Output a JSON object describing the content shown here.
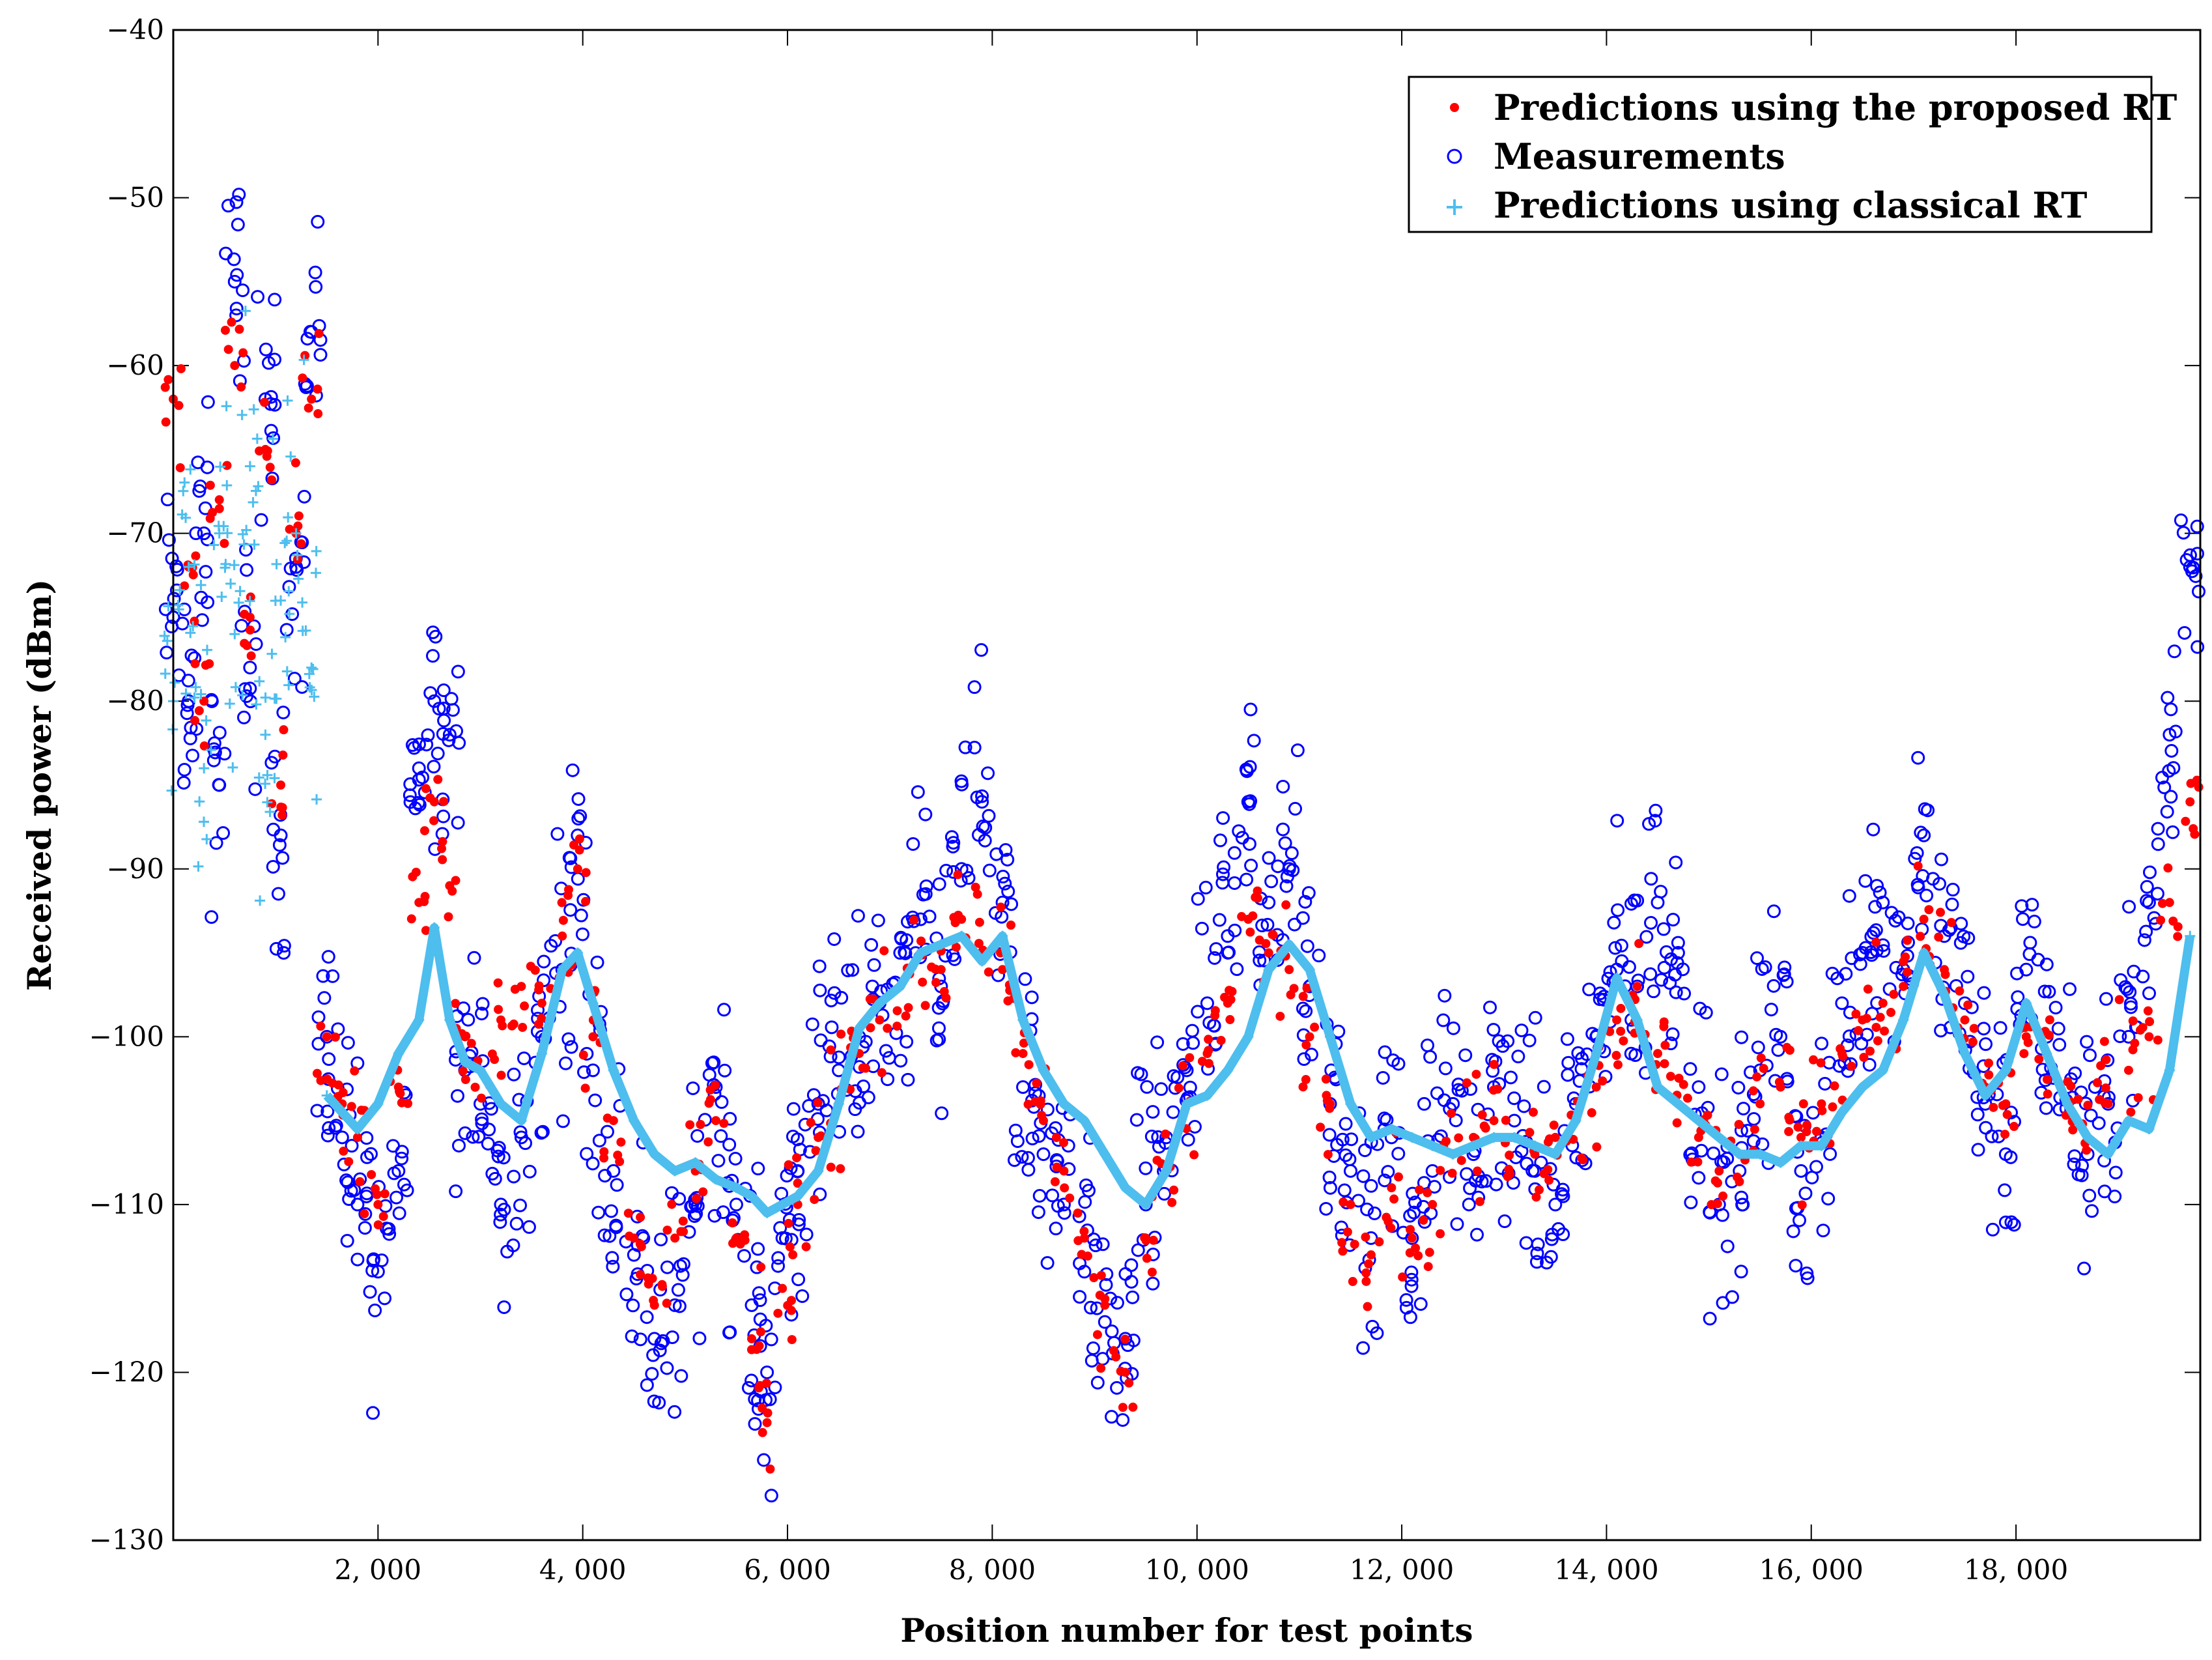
{
  "chart_data": {
    "type": "scatter",
    "xlabel": "Position number for test points",
    "ylabel": "Received power (dBm)",
    "xlim": [
      0,
      19800
    ],
    "ylim": [
      -130,
      -40
    ],
    "xticks": [
      2000,
      4000,
      6000,
      8000,
      10000,
      12000,
      14000,
      16000,
      18000
    ],
    "xtick_labels": [
      "2, 000",
      "4, 000",
      "6, 000",
      "8, 000",
      "10, 000",
      "12, 000",
      "14, 000",
      "16, 000",
      "18, 000"
    ],
    "yticks": [
      -40,
      -50,
      -60,
      -70,
      -80,
      -90,
      -100,
      -110,
      -120,
      -130
    ],
    "ytick_labels": [
      "−40",
      "−50",
      "−60",
      "−70",
      "−80",
      "−90",
      "−100",
      "−110",
      "−120",
      "−130"
    ],
    "legend_position": "top-right",
    "series": [
      {
        "name": "Predictions using the proposed RT",
        "marker": "dot",
        "color": "#ff0000",
        "x": [
          0,
          150,
          300,
          450,
          600,
          750,
          900,
          1050,
          1200,
          1350,
          1500,
          1650,
          1800,
          2000,
          2200,
          2400,
          2550,
          2700,
          2850,
          3000,
          3200,
          3400,
          3600,
          3800,
          3950,
          4100,
          4300,
          4500,
          4700,
          4900,
          5100,
          5300,
          5500,
          5650,
          5800,
          5950,
          6100,
          6300,
          6500,
          6700,
          6900,
          7100,
          7300,
          7500,
          7700,
          7900,
          8100,
          8300,
          8500,
          8700,
          8900,
          9100,
          9300,
          9500,
          9700,
          9900,
          10100,
          10300,
          10500,
          10700,
          10900,
          11100,
          11300,
          11500,
          11700,
          11900,
          12100,
          12300,
          12500,
          12700,
          12900,
          13100,
          13300,
          13500,
          13700,
          13900,
          14100,
          14300,
          14500,
          14700,
          14900,
          15100,
          15300,
          15500,
          15700,
          15900,
          16100,
          16300,
          16500,
          16700,
          16900,
          17100,
          17300,
          17500,
          17700,
          17900,
          18100,
          18300,
          18500,
          18700,
          18900,
          19100,
          19300,
          19500,
          19700
        ],
        "y": [
          -62,
          -72,
          -80,
          -68,
          -60,
          -75,
          -65,
          -85,
          -70,
          -62,
          -100,
          -104,
          -106,
          -110,
          -103,
          -92,
          -86,
          -91,
          -100,
          -102,
          -99,
          -97,
          -98,
          -94,
          -90,
          -100,
          -105,
          -112,
          -116,
          -112,
          -108,
          -105,
          -112,
          -118,
          -123,
          -115,
          -110,
          -106,
          -104,
          -101,
          -99,
          -97,
          -95,
          -96,
          -93,
          -95,
          -96,
          -101,
          -105,
          -108,
          -112,
          -116,
          -120,
          -112,
          -108,
          -104,
          -101,
          -98,
          -93,
          -95,
          -96,
          -100,
          -104,
          -110,
          -113,
          -109,
          -112,
          -110,
          -107,
          -106,
          -105,
          -106,
          -107,
          -106,
          -105,
          -103,
          -99,
          -97,
          -101,
          -104,
          -106,
          -108,
          -107,
          -104,
          -103,
          -106,
          -104,
          -101,
          -99,
          -98,
          -97,
          -93,
          -96,
          -99,
          -103,
          -104,
          -100,
          -101,
          -104,
          -106,
          -104,
          -102,
          -100,
          -92,
          -86
        ]
      },
      {
        "name": "Measurements",
        "marker": "circle",
        "color": "#0000ff",
        "x": [
          0,
          150,
          300,
          450,
          600,
          750,
          900,
          1050,
          1200,
          1350,
          1500,
          1650,
          1800,
          2000,
          2200,
          2400,
          2550,
          2700,
          2850,
          3000,
          3200,
          3400,
          3600,
          3800,
          3950,
          4100,
          4300,
          4500,
          4700,
          4900,
          5100,
          5300,
          5500,
          5650,
          5800,
          5950,
          6100,
          6300,
          6500,
          6700,
          6900,
          7100,
          7300,
          7500,
          7700,
          7900,
          8100,
          8300,
          8500,
          8700,
          8900,
          9100,
          9300,
          9500,
          9700,
          9900,
          10100,
          10300,
          10500,
          10700,
          10900,
          11100,
          11300,
          11500,
          11700,
          11900,
          12100,
          12300,
          12500,
          12700,
          12900,
          13100,
          13300,
          13500,
          13700,
          13900,
          14100,
          14300,
          14500,
          14700,
          14900,
          15100,
          15300,
          15500,
          15700,
          15900,
          16100,
          16300,
          16500,
          16700,
          16900,
          17100,
          17300,
          17500,
          17700,
          17900,
          18100,
          18300,
          18500,
          18700,
          18900,
          19100,
          19300,
          19500,
          19700
        ],
        "y": [
          -75,
          -80,
          -70,
          -85,
          -55,
          -78,
          -62,
          -88,
          -72,
          -58,
          -100,
          -106,
          -110,
          -114,
          -108,
          -84,
          -80,
          -82,
          -102,
          -104,
          -110,
          -106,
          -100,
          -96,
          -88,
          -102,
          -108,
          -113,
          -118,
          -116,
          -110,
          -103,
          -110,
          -116,
          -120,
          -112,
          -108,
          -104,
          -102,
          -100,
          -98,
          -95,
          -93,
          -97,
          -90,
          -86,
          -92,
          -103,
          -107,
          -110,
          -114,
          -117,
          -118,
          -110,
          -106,
          -102,
          -98,
          -94,
          -86,
          -92,
          -90,
          -97,
          -104,
          -108,
          -112,
          -106,
          -112,
          -108,
          -104,
          -107,
          -103,
          -105,
          -108,
          -110,
          -104,
          -100,
          -96,
          -97,
          -92,
          -95,
          -103,
          -110,
          -108,
          -102,
          -100,
          -108,
          -106,
          -98,
          -95,
          -92,
          -96,
          -88,
          -94,
          -98,
          -104,
          -107,
          -96,
          -100,
          -103,
          -107,
          -104,
          -100,
          -92,
          -82,
          -72
        ]
      },
      {
        "name": "Predictions using classical RT",
        "marker": "plus",
        "color": "#4dbeee",
        "x": [
          0,
          150,
          300,
          450,
          600,
          750,
          900,
          1050,
          1200,
          1350,
          1500,
          1650,
          1800,
          2000,
          2200,
          2400,
          2550,
          2700,
          2850,
          3000,
          3200,
          3400,
          3600,
          3800,
          3950,
          4100,
          4300,
          4500,
          4700,
          4900,
          5100,
          5300,
          5500,
          5650,
          5800,
          5950,
          6100,
          6300,
          6500,
          6700,
          6900,
          7100,
          7300,
          7500,
          7700,
          7900,
          8100,
          8300,
          8500,
          8700,
          8900,
          9100,
          9300,
          9500,
          9700,
          9900,
          10100,
          10300,
          10500,
          10700,
          10900,
          11100,
          11300,
          11500,
          11700,
          11900,
          12100,
          12300,
          12500,
          12700,
          12900,
          13100,
          13300,
          13500,
          13700,
          13900,
          14100,
          14300,
          14500,
          14700,
          14900,
          15100,
          15300,
          15500,
          15700,
          15900,
          16100,
          16300,
          16500,
          16700,
          16900,
          17100,
          17300,
          17500,
          17700,
          17900,
          18100,
          18300,
          18500,
          18700,
          18900,
          19100,
          19300,
          19500,
          19700
        ],
        "y": [
          -80,
          -72,
          -84,
          -70,
          -76,
          -66,
          -82,
          -74,
          -70,
          -78,
          -103.5,
          -104.5,
          -105.5,
          -104,
          -101,
          -99,
          -93.5,
          -99,
          -101.5,
          -102,
          -104,
          -105,
          -101,
          -96,
          -95,
          -98,
          -102,
          -105,
          -107,
          -108,
          -107.5,
          -108.5,
          -109,
          -109.5,
          -110.5,
          -110,
          -109.5,
          -108,
          -104,
          -99.5,
          -98,
          -97,
          -95,
          -94.5,
          -94,
          -95.5,
          -94,
          -99,
          -102,
          -104,
          -105,
          -107,
          -109,
          -110,
          -108,
          -104,
          -103.5,
          -102,
          -100,
          -96,
          -94.5,
          -96,
          -100,
          -104,
          -106,
          -105.5,
          -106,
          -106.5,
          -107,
          -106.5,
          -106,
          -106,
          -106.5,
          -107,
          -105,
          -101,
          -96.5,
          -99,
          -103,
          -104,
          -105,
          -106,
          -107,
          -107,
          -107.5,
          -106.5,
          -106.5,
          -104.5,
          -103,
          -102,
          -99,
          -95,
          -97.5,
          -101,
          -103.5,
          -102,
          -98,
          -101,
          -104,
          -106,
          -107,
          -105,
          -105.5,
          -102,
          -94
        ]
      }
    ]
  }
}
